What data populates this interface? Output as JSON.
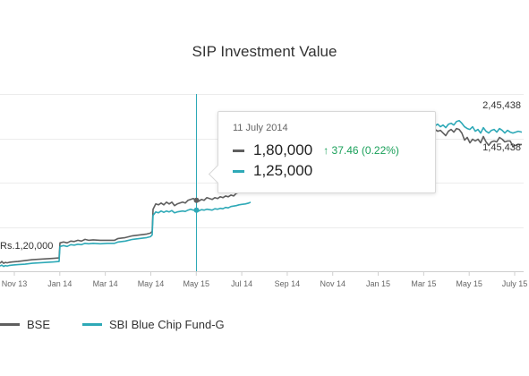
{
  "chart_data": {
    "type": "line",
    "title": "SIP Investment Value",
    "x_ticks": [
      "Nov 13",
      "Jan 14",
      "Mar 14",
      "May 14",
      "May 15",
      "Jul 14",
      "Sep 14",
      "Nov 14",
      "Jan 15",
      "Mar 15",
      "May 15",
      "July 15"
    ],
    "ylim": [
      80000,
      280000
    ],
    "y_gridlines": [
      80000,
      130000,
      180000,
      230000,
      280000
    ],
    "colors": {
      "BSE": "#5f5f5f",
      "SBI Blue Chip Fund-G": "#2ea9b7"
    },
    "series": [
      {
        "name": "BSE",
        "points": [
          [
            0,
            89000
          ],
          [
            2,
            91000
          ],
          [
            4,
            89000
          ],
          [
            6,
            90000
          ],
          [
            8,
            89500
          ],
          [
            10,
            90000
          ],
          [
            14,
            90500
          ],
          [
            20,
            91000
          ],
          [
            28,
            92000
          ],
          [
            36,
            93000
          ],
          [
            44,
            93500
          ],
          [
            52,
            94000
          ],
          [
            60,
            94500
          ],
          [
            66,
            95000
          ],
          [
            67,
            112000
          ],
          [
            71,
            113000
          ],
          [
            75,
            112000
          ],
          [
            79,
            114000
          ],
          [
            83,
            113500
          ],
          [
            87,
            115000
          ],
          [
            91,
            114000
          ],
          [
            95,
            116000
          ],
          [
            99,
            115000
          ],
          [
            104,
            115500
          ],
          [
            112,
            115000
          ],
          [
            120,
            115000
          ],
          [
            128,
            115000
          ],
          [
            132,
            117000
          ],
          [
            140,
            118000
          ],
          [
            148,
            120000
          ],
          [
            156,
            121000
          ],
          [
            164,
            122000
          ],
          [
            168,
            123000
          ],
          [
            170,
            125000
          ],
          [
            171,
            150000
          ],
          [
            174,
            156000
          ],
          [
            177,
            155000
          ],
          [
            180,
            157000
          ],
          [
            183,
            155000
          ],
          [
            186,
            158000
          ],
          [
            189,
            156000
          ],
          [
            192,
            158000
          ],
          [
            195,
            154000
          ],
          [
            198,
            156000
          ],
          [
            201,
            157000
          ],
          [
            204,
            158000
          ],
          [
            207,
            157000
          ],
          [
            210,
            160000
          ],
          [
            213,
            161000
          ],
          [
            216,
            162000
          ],
          [
            219,
            160000
          ],
          [
            222,
            159000
          ],
          [
            225,
            161000
          ],
          [
            228,
            160000
          ],
          [
            231,
            163000
          ],
          [
            234,
            162000
          ],
          [
            237,
            161000
          ],
          [
            240,
            163000
          ],
          [
            243,
            162000
          ],
          [
            246,
            164000
          ],
          [
            249,
            163000
          ],
          [
            252,
            165000
          ],
          [
            255,
            164000
          ],
          [
            258,
            166000
          ],
          [
            261,
            165000
          ],
          [
            264,
            168000
          ],
          [
            267,
            169000
          ],
          [
            270,
            170000
          ],
          [
            274,
            172000
          ],
          [
            278,
            173000
          ],
          [
            280,
            174000
          ],
          [
            486,
            240000
          ],
          [
            489,
            238000
          ],
          [
            492,
            239000
          ],
          [
            495,
            236000
          ],
          [
            498,
            233000
          ],
          [
            501,
            238000
          ],
          [
            504,
            240000
          ],
          [
            507,
            237000
          ],
          [
            510,
            241000
          ],
          [
            513,
            240000
          ],
          [
            516,
            236000
          ],
          [
            519,
            228000
          ],
          [
            522,
            231000
          ],
          [
            525,
            225000
          ],
          [
            528,
            229000
          ],
          [
            531,
            227000
          ],
          [
            534,
            229000
          ],
          [
            537,
            225000
          ],
          [
            540,
            232000
          ],
          [
            543,
            226000
          ],
          [
            546,
            222000
          ],
          [
            549,
            226000
          ],
          [
            552,
            227000
          ],
          [
            555,
            226000
          ],
          [
            558,
            231000
          ],
          [
            561,
            229000
          ],
          [
            564,
            226000
          ],
          [
            567,
            227000
          ],
          [
            570,
            227000
          ],
          [
            573,
            221000
          ],
          [
            576,
            222000
          ],
          [
            579,
            223000
          ],
          [
            583,
            223000
          ]
        ]
      },
      {
        "name": "SBI Blue Chip Fund-G",
        "points": [
          [
            0,
            86000
          ],
          [
            2,
            87000
          ],
          [
            4,
            85500
          ],
          [
            6,
            86500
          ],
          [
            8,
            86000
          ],
          [
            10,
            86500
          ],
          [
            14,
            87000
          ],
          [
            20,
            87500
          ],
          [
            28,
            88000
          ],
          [
            36,
            89000
          ],
          [
            44,
            89500
          ],
          [
            52,
            90000
          ],
          [
            60,
            90500
          ],
          [
            66,
            91000
          ],
          [
            67,
            108000
          ],
          [
            71,
            109000
          ],
          [
            75,
            108000
          ],
          [
            79,
            110000
          ],
          [
            83,
            109500
          ],
          [
            87,
            110500
          ],
          [
            91,
            110000
          ],
          [
            95,
            111500
          ],
          [
            99,
            111000
          ],
          [
            104,
            111500
          ],
          [
            112,
            111000
          ],
          [
            120,
            111500
          ],
          [
            128,
            111500
          ],
          [
            132,
            113000
          ],
          [
            140,
            114000
          ],
          [
            148,
            116000
          ],
          [
            156,
            117000
          ],
          [
            164,
            118000
          ],
          [
            168,
            119000
          ],
          [
            170,
            121000
          ],
          [
            171,
            143000
          ],
          [
            174,
            147000
          ],
          [
            177,
            146000
          ],
          [
            180,
            148000
          ],
          [
            183,
            146500
          ],
          [
            186,
            148000
          ],
          [
            189,
            147000
          ],
          [
            192,
            148500
          ],
          [
            195,
            146000
          ],
          [
            198,
            147000
          ],
          [
            201,
            147500
          ],
          [
            204,
            148000
          ],
          [
            207,
            147500
          ],
          [
            210,
            149000
          ],
          [
            213,
            150000
          ],
          [
            216,
            149000
          ],
          [
            219,
            149000
          ],
          [
            222,
            148000
          ],
          [
            225,
            149500
          ],
          [
            228,
            149000
          ],
          [
            231,
            150000
          ],
          [
            234,
            149500
          ],
          [
            237,
            149000
          ],
          [
            240,
            150500
          ],
          [
            243,
            150000
          ],
          [
            246,
            151000
          ],
          [
            249,
            150500
          ],
          [
            252,
            152000
          ],
          [
            255,
            151500
          ],
          [
            258,
            153000
          ],
          [
            261,
            153500
          ],
          [
            264,
            154000
          ],
          [
            267,
            155000
          ],
          [
            270,
            155500
          ],
          [
            274,
            156000
          ],
          [
            278,
            157000
          ],
          [
            280,
            158000
          ],
          [
            486,
            244000
          ],
          [
            489,
            246000
          ],
          [
            492,
            243000
          ],
          [
            495,
            245000
          ],
          [
            498,
            242000
          ],
          [
            501,
            246000
          ],
          [
            504,
            247000
          ],
          [
            507,
            245000
          ],
          [
            510,
            249000
          ],
          [
            513,
            250000
          ],
          [
            516,
            247000
          ],
          [
            519,
            243000
          ],
          [
            522,
            241000
          ],
          [
            525,
            240000
          ],
          [
            528,
            243000
          ],
          [
            531,
            238000
          ],
          [
            534,
            240000
          ],
          [
            537,
            236000
          ],
          [
            540,
            242000
          ],
          [
            543,
            238000
          ],
          [
            546,
            236000
          ],
          [
            549,
            239000
          ],
          [
            552,
            240000
          ],
          [
            555,
            237000
          ],
          [
            558,
            241000
          ],
          [
            561,
            239000
          ],
          [
            564,
            236000
          ],
          [
            567,
            239000
          ],
          [
            570,
            237000
          ],
          [
            573,
            236000
          ],
          [
            576,
            237000
          ],
          [
            579,
            238000
          ],
          [
            583,
            237000
          ]
        ]
      }
    ],
    "annotations": {
      "start_label": "Rs.1,20,000",
      "end_label_high": "2,45,438",
      "end_label_low": "1,45,438"
    },
    "tooltip": {
      "date": "11 July 2014",
      "bse_value": "1,80,000",
      "bse_change": "37.46 (0.22%)",
      "fund_value": "1,25,000"
    },
    "legend_position": "bottom-left",
    "grid": true
  }
}
